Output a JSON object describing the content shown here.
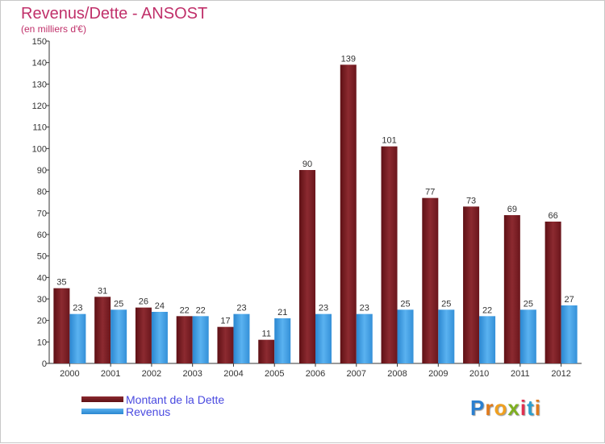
{
  "title": "Revenus/Dette - ANSOST",
  "subtitle": "(en milliers d'€)",
  "logo": {
    "text": "Proxiti",
    "letters": [
      "P",
      "r",
      "o",
      "x",
      "i",
      "t",
      "i"
    ],
    "colors": [
      "#2a7fd0",
      "#e07a1c",
      "#f0a020",
      "#7fb020",
      "#e03050",
      "#2a9fd0",
      "#e07a1c"
    ]
  },
  "legend": [
    {
      "label": "Montant de la Dette",
      "color": "#7a1e24"
    },
    {
      "label": "Revenus",
      "color": "#3a9ae0"
    }
  ],
  "chart_data": {
    "type": "bar",
    "categories": [
      "2000",
      "2001",
      "2002",
      "2003",
      "2004",
      "2005",
      "2006",
      "2007",
      "2008",
      "2009",
      "2010",
      "2011",
      "2012"
    ],
    "series": [
      {
        "name": "Montant de la Dette",
        "color": "#7a1e24",
        "values": [
          35,
          31,
          26,
          22,
          17,
          11,
          90,
          139,
          101,
          77,
          73,
          69,
          66
        ]
      },
      {
        "name": "Revenus",
        "color": "#3a9ae0",
        "values": [
          23,
          25,
          24,
          22,
          23,
          21,
          23,
          23,
          25,
          25,
          22,
          25,
          27
        ]
      }
    ],
    "title": "Revenus/Dette - ANSOST",
    "subtitle": "(en milliers d'€)",
    "xlabel": "",
    "ylabel": "",
    "ylim": [
      0,
      150
    ],
    "yticks": [
      0,
      10,
      20,
      30,
      40,
      50,
      60,
      70,
      80,
      90,
      100,
      110,
      120,
      130,
      140,
      150
    ],
    "grid": false,
    "legend_position": "bottom-left"
  }
}
